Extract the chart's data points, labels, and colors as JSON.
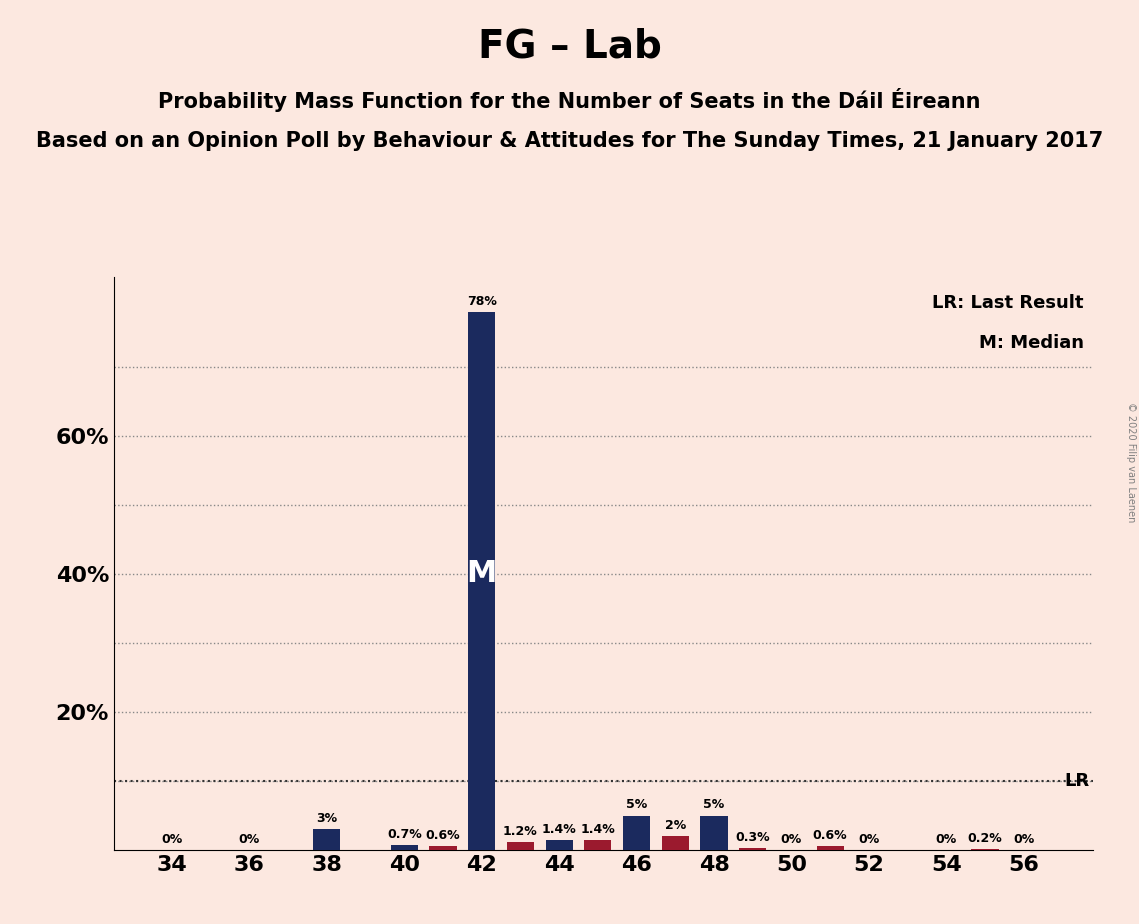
{
  "title": "FG – Lab",
  "subtitle1": "Probability Mass Function for the Number of Seats in the Dáil Éireann",
  "subtitle2": "Based on an Opinion Poll by Behaviour & Attitudes for The Sunday Times, 21 January 2017",
  "copyright": "© 2020 Filip van Laenen",
  "background_color": "#fce8e0",
  "bar_color_navy": "#1b2a5e",
  "bar_color_red": "#9b1a2e",
  "lr_value": 0.1,
  "lr_label": "LR",
  "median_label": "M",
  "median_seat": 42,
  "seats": [
    34,
    35,
    36,
    37,
    38,
    39,
    40,
    41,
    42,
    43,
    44,
    45,
    46,
    47,
    48,
    49,
    50,
    51,
    52,
    53,
    54,
    55,
    56
  ],
  "bar_values": [
    0.0,
    0.0,
    0.0,
    0.0,
    0.03,
    0.0,
    0.007,
    0.006,
    0.78,
    0.012,
    0.014,
    0.014,
    0.05,
    0.02,
    0.05,
    0.003,
    0.0,
    0.006,
    0.0,
    0.0,
    0.0,
    0.002,
    0.0
  ],
  "bar_colors": [
    "navy",
    "navy",
    "navy",
    "navy",
    "navy",
    "navy",
    "navy",
    "red",
    "navy",
    "red",
    "navy",
    "red",
    "navy",
    "red",
    "navy",
    "red",
    "navy",
    "red",
    "navy",
    "navy",
    "navy",
    "red",
    "navy"
  ],
  "bar_labels": [
    "0%",
    "",
    "0%",
    "",
    "3%",
    "",
    "0.7%",
    "0.6%",
    "78%",
    "1.2%",
    "1.4%",
    "1.4%",
    "5%",
    "2%",
    "5%",
    "0.3%",
    "0%",
    "0.6%",
    "0%",
    "",
    "0%",
    "0.2%",
    "0%"
  ],
  "show_label": [
    true,
    false,
    true,
    false,
    true,
    false,
    true,
    true,
    true,
    true,
    true,
    true,
    true,
    true,
    true,
    true,
    true,
    true,
    true,
    false,
    true,
    true,
    true
  ],
  "xticks": [
    34,
    36,
    38,
    40,
    42,
    44,
    46,
    48,
    50,
    52,
    54,
    56
  ],
  "xlim": [
    32.5,
    57.8
  ],
  "ylim": [
    0,
    0.83
  ],
  "ytick_vals": [
    0.2,
    0.4,
    0.6
  ],
  "ytick_labels": [
    "20%",
    "40%",
    "60%"
  ],
  "grid_lines": [
    0.1,
    0.2,
    0.3,
    0.4,
    0.5,
    0.6,
    0.7
  ],
  "legend_lr": "LR: Last Result",
  "legend_m": "M: Median",
  "label_fontsize": 9,
  "tick_fontsize": 16,
  "title_fontsize": 28,
  "subtitle1_fontsize": 15,
  "subtitle2_fontsize": 15
}
